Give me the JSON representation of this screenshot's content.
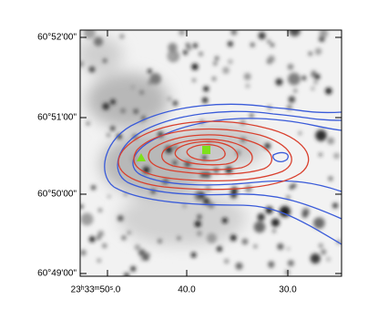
{
  "axes": {
    "x_ticks": [
      "23ʰ33ᵐ50ˢ.0",
      "40.0",
      "30.0"
    ],
    "y_ticks": [
      "60°52'00\"",
      "60°51'00\"",
      "60°50'00\"",
      "60°49'00\""
    ]
  }
}
